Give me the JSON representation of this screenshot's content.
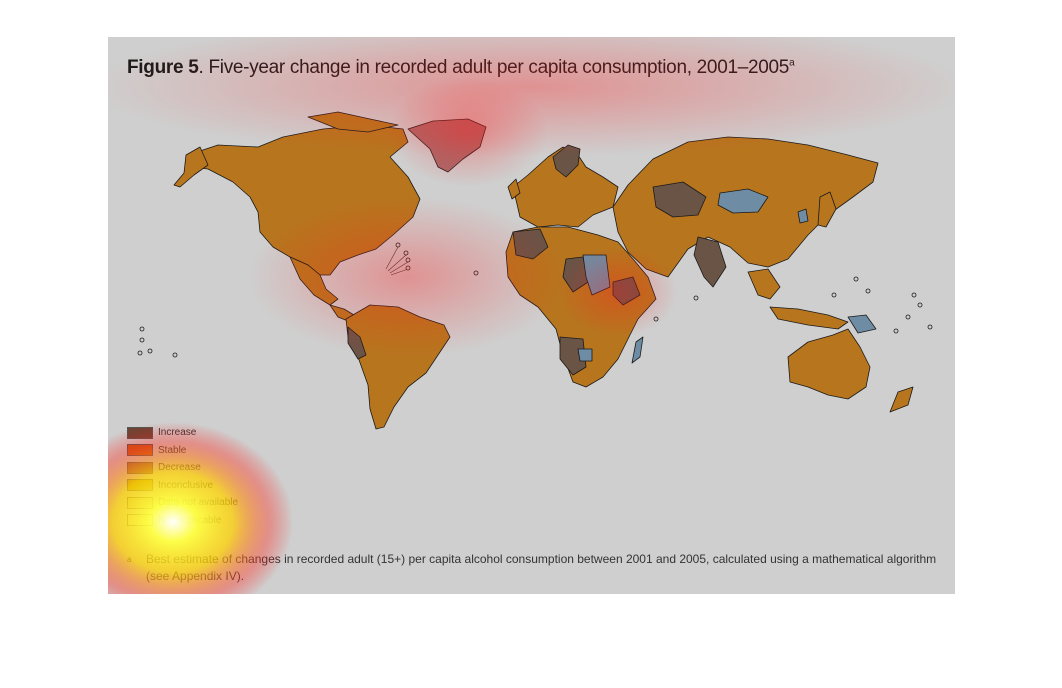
{
  "figure": {
    "number": "Figure 5",
    "title": ". Five-year change in recorded adult per capita consumption, 2001–2005",
    "title_sup": "a"
  },
  "legend": {
    "items": [
      {
        "label": "Increase",
        "color": "#6b4636"
      },
      {
        "label": "Stable",
        "color": "#c55a16"
      },
      {
        "label": "Decrease",
        "color": "#9a6b3d"
      },
      {
        "label": "Inconclusive",
        "color": "#b39a1f"
      },
      {
        "label": "Data not available",
        "color": "#c8c49a"
      },
      {
        "label": "Not applicable",
        "color": "#d6d6c4"
      }
    ]
  },
  "footnote": {
    "mark": "a",
    "text": "Best estimate of changes in recorded adult (15+) per capita alcohol consumption between 2001 and 2005, calculated using a mathematical algorithm (see Appendix IV)."
  },
  "colors": {
    "land_main": "#b7751e",
    "increase_area": "#6a5446",
    "decrease_area": "#6e8da4",
    "greenland": "#a86a6a",
    "border": "#1a1a1a"
  }
}
